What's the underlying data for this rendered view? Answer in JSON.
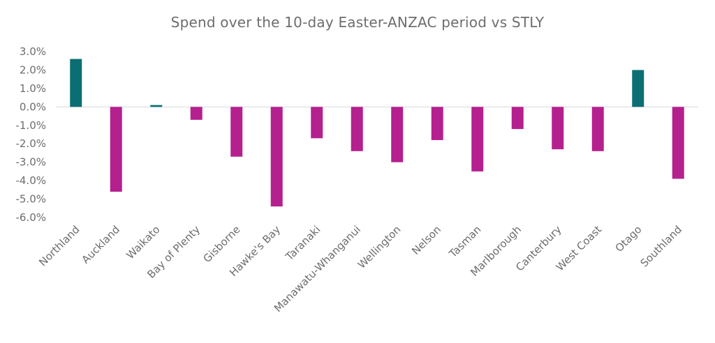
{
  "chart_data": {
    "type": "bar",
    "title": "Spend over the 10-day Easter-ANZAC period vs STLY",
    "xlabel": "",
    "ylabel": "",
    "ylim": [
      -6.0,
      3.0
    ],
    "yticks": [
      "3.0%",
      "2.0%",
      "1.0%",
      "0.0%",
      "-1.0%",
      "-2.0%",
      "-3.0%",
      "-4.0%",
      "-5.0%",
      "-6.0%"
    ],
    "ytick_values": [
      3.0,
      2.0,
      1.0,
      0.0,
      -1.0,
      -2.0,
      -3.0,
      -4.0,
      -5.0,
      -6.0
    ],
    "value_unit": "%",
    "grid": false,
    "legend": "none",
    "categories": [
      "Northland",
      "Auckland",
      "Waikato",
      "Bay of Plenty",
      "Gisborne",
      "Hawke's Bay",
      "Taranaki",
      "Manawatu-Whanganui",
      "Wellington",
      "Nelson",
      "Tasman",
      "Marlborough",
      "Canterbury",
      "West Coast",
      "Otago",
      "Southland"
    ],
    "values": [
      2.6,
      -4.6,
      0.1,
      -0.7,
      -2.7,
      -5.4,
      -1.7,
      -2.4,
      -3.0,
      -1.8,
      -3.5,
      -1.2,
      -2.3,
      -2.4,
      2.0,
      -3.9
    ],
    "colors": {
      "positive": "#0b6e72",
      "negative": "#b5208f",
      "axis": "#d9d9d9",
      "text": "#6d6d6d"
    }
  }
}
